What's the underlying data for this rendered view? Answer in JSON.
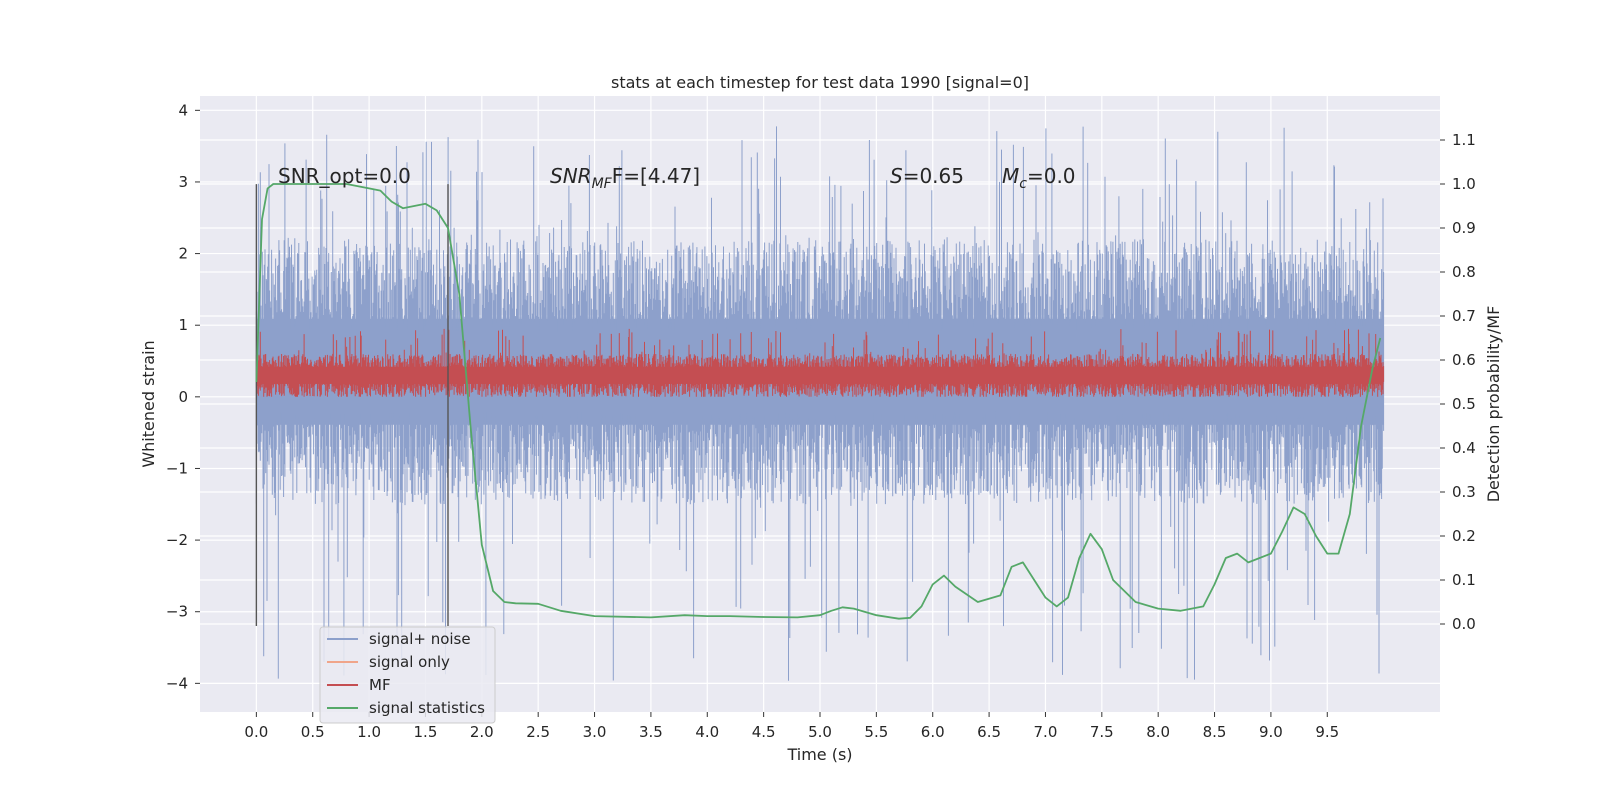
{
  "chart_data": {
    "type": "line",
    "title": "stats at each timestep for test data 1990 [signal=0]",
    "xlabel": "Time (s)",
    "ylabel": "Whitened strain",
    "ylabel_right": "Detection probability/MF",
    "xlim": [
      -0.5,
      10.5
    ],
    "ylim": [
      -4.4,
      4.2
    ],
    "ylim_right": [
      -0.2,
      1.2
    ],
    "x_ticks": [
      "0.0",
      "0.5",
      "1.0",
      "1.5",
      "2.0",
      "2.5",
      "3.0",
      "3.5",
      "4.0",
      "4.5",
      "5.0",
      "5.5",
      "6.0",
      "6.5",
      "7.0",
      "7.5",
      "8.0",
      "8.5",
      "9.0",
      "9.5"
    ],
    "y_ticks": [
      "−4",
      "−3",
      "−2",
      "−1",
      "0",
      "1",
      "2",
      "3",
      "4"
    ],
    "y_ticks_right": [
      "0.0",
      "0.1",
      "0.2",
      "0.3",
      "0.4",
      "0.5",
      "0.6",
      "0.7",
      "0.8",
      "0.9",
      "1.0",
      "1.1"
    ],
    "annotations": {
      "snr_opt": "SNR_opt=0.0",
      "snr_mf_main": "SNR",
      "snr_mf_sub": "MF",
      "snr_mf_rest": "F=[4.47]",
      "s_var": "S",
      "s_rest": "=0.65",
      "mc_var": "M",
      "mc_sub": "c",
      "mc_rest": "=0.0"
    },
    "vertical_markers_s": [
      0.0,
      1.7
    ],
    "legend": {
      "position": "lower-left",
      "entries": [
        {
          "label": "signal+ noise",
          "color": "#8da0cb"
        },
        {
          "label": "signal only",
          "color": "#f0a58a"
        },
        {
          "label": "MF",
          "color": "#c44e52"
        },
        {
          "label": "signal statistics",
          "color": "#55a868"
        }
      ]
    },
    "series": [
      {
        "name": "signal+ noise",
        "axis": "left",
        "color": "#8da0cb",
        "kind": "noise",
        "x_range": [
          0.0,
          10.0
        ],
        "typical_range": [
          -1.5,
          2.2
        ],
        "extreme_range": [
          -4.0,
          3.8
        ]
      },
      {
        "name": "MF",
        "axis": "left",
        "color": "#c44e52",
        "kind": "noise",
        "x_range": [
          0.0,
          10.0
        ],
        "typical_range": [
          0.0,
          0.6
        ],
        "extreme_range": [
          0.0,
          0.95
        ]
      },
      {
        "name": "signal statistics",
        "axis": "right",
        "color": "#55a868",
        "kind": "line",
        "x": [
          0.0,
          0.05,
          0.1,
          0.15,
          0.3,
          0.5,
          0.8,
          1.0,
          1.1,
          1.2,
          1.3,
          1.4,
          1.5,
          1.6,
          1.7,
          1.8,
          1.9,
          2.0,
          2.1,
          2.2,
          2.3,
          2.5,
          2.7,
          3.0,
          3.5,
          3.8,
          4.0,
          4.2,
          4.5,
          4.8,
          5.0,
          5.1,
          5.2,
          5.3,
          5.5,
          5.7,
          5.8,
          5.9,
          6.0,
          6.1,
          6.2,
          6.4,
          6.6,
          6.7,
          6.8,
          6.9,
          7.0,
          7.1,
          7.2,
          7.3,
          7.4,
          7.5,
          7.6,
          7.8,
          8.0,
          8.2,
          8.4,
          8.5,
          8.6,
          8.7,
          8.8,
          9.0,
          9.1,
          9.2,
          9.3,
          9.4,
          9.5,
          9.6,
          9.7,
          9.8,
          9.9,
          9.97
        ],
        "values": [
          0.55,
          0.92,
          0.99,
          1.0,
          1.0,
          1.0,
          1.0,
          0.99,
          0.985,
          0.96,
          0.945,
          0.95,
          0.955,
          0.94,
          0.9,
          0.75,
          0.45,
          0.18,
          0.075,
          0.05,
          0.047,
          0.046,
          0.03,
          0.018,
          0.015,
          0.02,
          0.018,
          0.018,
          0.016,
          0.015,
          0.02,
          0.03,
          0.038,
          0.035,
          0.02,
          0.012,
          0.014,
          0.04,
          0.09,
          0.11,
          0.085,
          0.05,
          0.065,
          0.13,
          0.14,
          0.1,
          0.06,
          0.04,
          0.06,
          0.15,
          0.205,
          0.17,
          0.1,
          0.05,
          0.035,
          0.03,
          0.04,
          0.09,
          0.15,
          0.16,
          0.14,
          0.16,
          0.21,
          0.265,
          0.25,
          0.2,
          0.16,
          0.16,
          0.25,
          0.45,
          0.58,
          0.65
        ]
      }
    ]
  }
}
